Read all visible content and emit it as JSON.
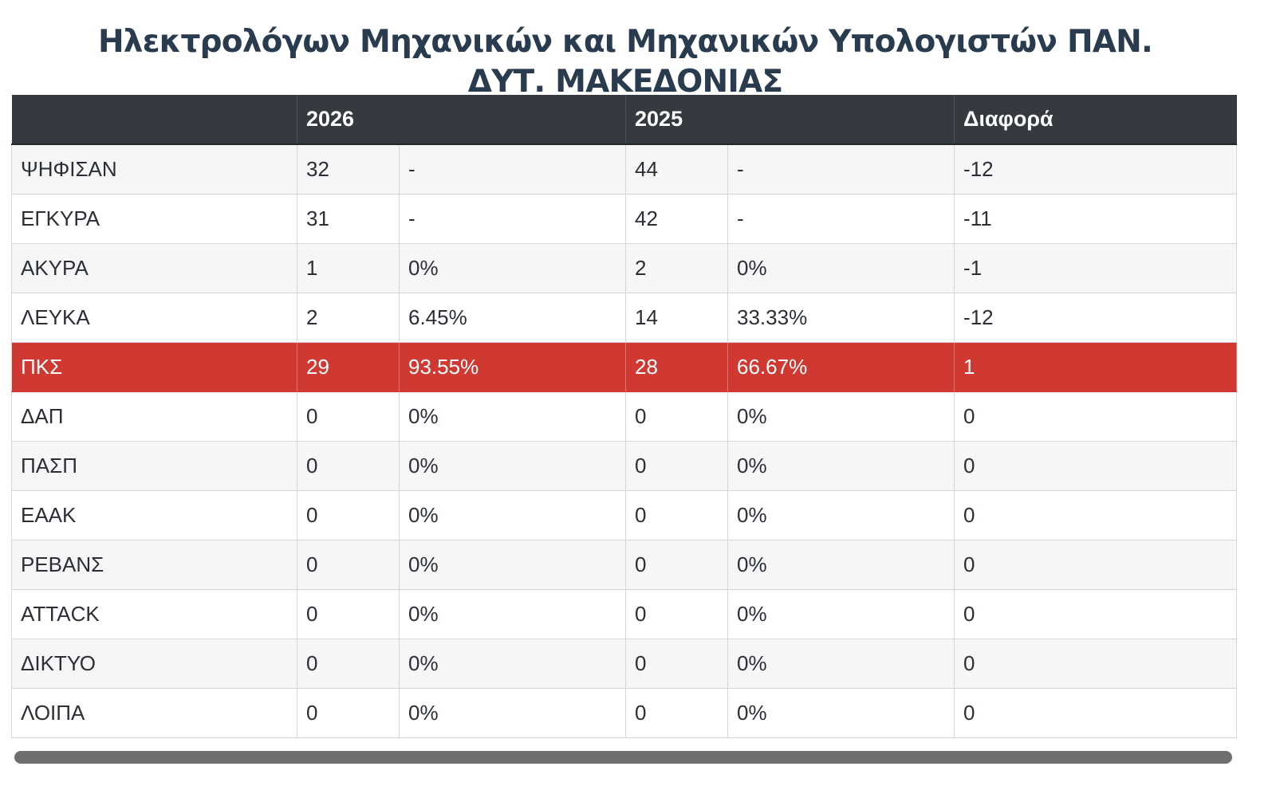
{
  "title": {
    "line1": "Ηλεκτρολόγων Μηχανικών και Μηχανικών Υπολογιστών ΠΑΝ.",
    "line2": "ΔΥΤ. ΜΑΚΕΔΟΝΙΑΣ"
  },
  "table": {
    "headers": [
      "",
      "2026",
      "",
      "2025",
      "",
      "Διαφορά"
    ],
    "rows": [
      {
        "label": "ΨΗΦΙΣΑΝ",
        "v2026": "32",
        "p2026": "-",
        "v2025": "44",
        "p2025": "-",
        "diff": "-12"
      },
      {
        "label": "ΕΓΚΥΡΑ",
        "v2026": "31",
        "p2026": "-",
        "v2025": "42",
        "p2025": "-",
        "diff": "-11"
      },
      {
        "label": "ΑΚΥΡΑ",
        "v2026": "1",
        "p2026": "0%",
        "v2025": "2",
        "p2025": "0%",
        "diff": "-1"
      },
      {
        "label": "ΛΕΥΚΑ",
        "v2026": "2",
        "p2026": "6.45%",
        "v2025": "14",
        "p2025": "33.33%",
        "diff": "-12"
      },
      {
        "label": "ΠΚΣ",
        "v2026": "29",
        "p2026": "93.55%",
        "v2025": "28",
        "p2025": "66.67%",
        "diff": "1"
      },
      {
        "label": "ΔΑΠ",
        "v2026": "0",
        "p2026": "0%",
        "v2025": "0",
        "p2025": "0%",
        "diff": "0"
      },
      {
        "label": "ΠΑΣΠ",
        "v2026": "0",
        "p2026": "0%",
        "v2025": "0",
        "p2025": "0%",
        "diff": "0"
      },
      {
        "label": "ΕΑΑΚ",
        "v2026": "0",
        "p2026": "0%",
        "v2025": "0",
        "p2025": "0%",
        "diff": "0"
      },
      {
        "label": "ΡΕΒΑΝΣ",
        "v2026": "0",
        "p2026": "0%",
        "v2025": "0",
        "p2025": "0%",
        "diff": "0"
      },
      {
        "label": "ATTACK",
        "v2026": "0",
        "p2026": "0%",
        "v2025": "0",
        "p2025": "0%",
        "diff": "0"
      },
      {
        "label": "ΔΙΚΤΥΟ",
        "v2026": "0",
        "p2026": "0%",
        "v2025": "0",
        "p2025": "0%",
        "diff": "0"
      },
      {
        "label": "ΛΟΙΠΑ",
        "v2026": "0",
        "p2026": "0%",
        "v2025": "0",
        "p2025": "0%",
        "diff": "0"
      }
    ],
    "highlight_row": "ΠΚΣ"
  },
  "colors": {
    "header_bg": "#343a40",
    "highlight_bg": "#d03832",
    "title_color": "#283b4f"
  }
}
